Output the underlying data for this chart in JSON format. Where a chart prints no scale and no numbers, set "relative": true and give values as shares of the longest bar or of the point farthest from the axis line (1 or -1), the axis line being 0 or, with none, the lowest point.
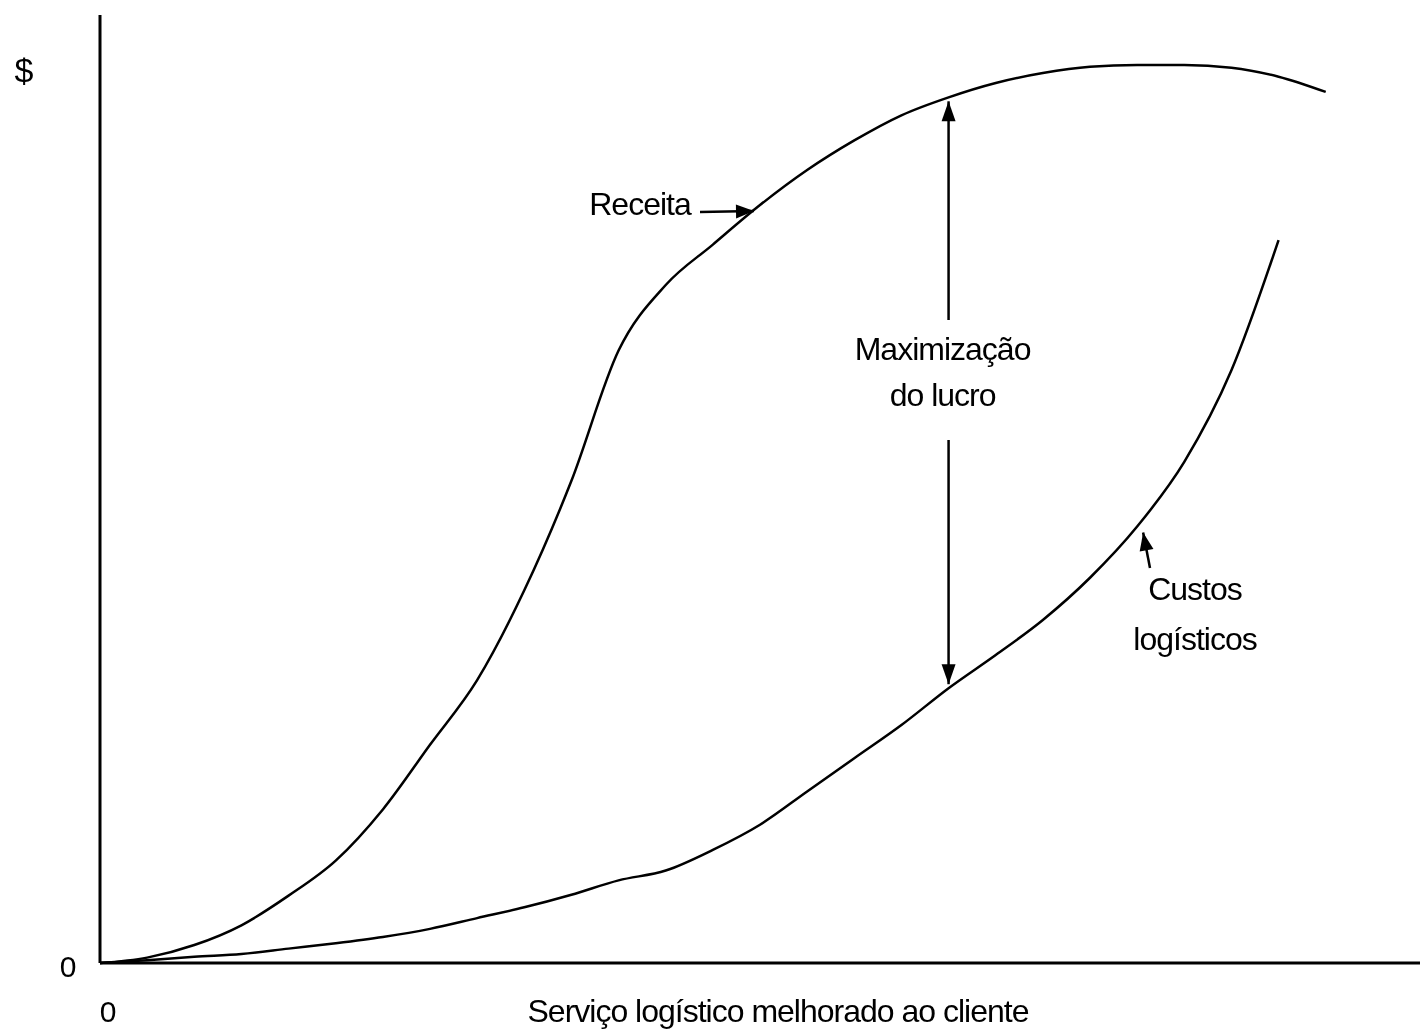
{
  "chart_data": {
    "type": "line",
    "relative": true,
    "xlabel": "Serviço logístico melhorado ao cliente",
    "ylabel": "$",
    "categories": [
      null,
      null,
      null,
      null,
      null,
      null,
      null,
      null,
      null,
      null,
      null,
      null,
      null,
      null,
      null,
      null,
      null,
      null,
      null,
      null,
      null,
      null,
      null,
      null,
      null,
      null,
      null,
      null,
      null
    ],
    "series": [
      {
        "name": "Receita",
        "color": "#000000",
        "values": [
          0,
          0.006,
          0.02,
          0.042,
          0.075,
          0.114,
          0.171,
          0.243,
          0.315,
          0.415,
          0.537,
          0.682,
          0.755,
          0.8,
          0.844,
          0.883,
          0.916,
          0.944,
          0.964,
          0.98,
          0.991,
          0.998,
          1,
          1,
          0.997,
          0.987,
          0.97,
          null,
          null
        ]
      },
      {
        "name": "Custos logísticos",
        "color": "#000000",
        "values": [
          0,
          0.003,
          0.007,
          0.01,
          0.016,
          0.022,
          0.029,
          0.038,
          0.05,
          0.062,
          0.076,
          0.092,
          0.103,
          0.126,
          0.154,
          0.191,
          0.228,
          0.265,
          0.306,
          0.343,
          0.382,
          0.429,
          0.486,
          0.558,
          0.66,
          0.805,
          null,
          null,
          null
        ]
      }
    ],
    "annotations": [
      "Maximização do lucro",
      "0",
      "0"
    ],
    "marker": "none",
    "line_style": "solid"
  }
}
